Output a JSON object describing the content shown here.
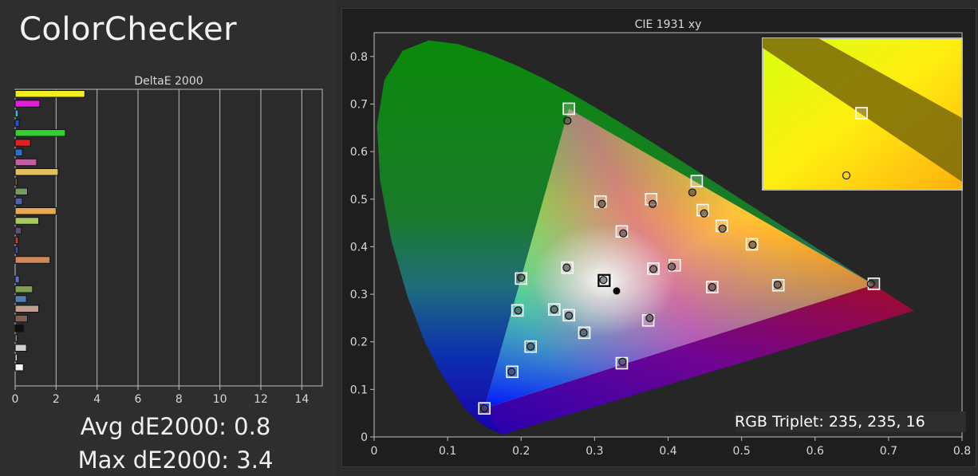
{
  "app": {
    "title": "ColorChecker"
  },
  "stats": {
    "avg": "Avg dE2000: 0.8",
    "max": "Max dE2000: 3.4"
  },
  "readout": {
    "rgb": "RGB Triplet: 235, 235, 16"
  },
  "colors": {
    "background": "#2b2b2b",
    "panel": "#1e1e1e",
    "grid": "#bdbdbd"
  },
  "chart_data": [
    {
      "type": "bar",
      "orientation": "horizontal",
      "title": "DeltaE 2000",
      "xlim": [
        0,
        15
      ],
      "xticks": [
        0,
        2,
        4,
        6,
        8,
        10,
        12,
        14
      ],
      "values": [
        3.4,
        1.2,
        0.15,
        0.2,
        2.45,
        0.75,
        0.35,
        1.05,
        2.1,
        0.1,
        0.6,
        0.35,
        2.0,
        1.15,
        0.3,
        0.15,
        0.15,
        1.7,
        0.0,
        0.2,
        0.85,
        0.55,
        1.15,
        0.6,
        0.4,
        0.1,
        0.55,
        0.1,
        0.4
      ],
      "bar_colors": [
        "#f0ee20",
        "#e020d8",
        "#3db0e0",
        "#2050d0",
        "#30d030",
        "#e02020",
        "#3070c0",
        "#c060a0",
        "#e0c060",
        "#707040",
        "#70a060",
        "#5060b0",
        "#e8a850",
        "#a8c860",
        "#605070",
        "#c04040",
        "#4050a0",
        "#d08858",
        "#000000",
        "#6070c0",
        "#80a050",
        "#5080b0",
        "#c0a090",
        "#806050",
        "#101010",
        "#909090",
        "#d0d0d0",
        "#e0e0e0",
        "#f4f4f4"
      ]
    },
    {
      "type": "scatter",
      "title": "CIE 1931 xy",
      "xlim": [
        0,
        0.8
      ],
      "ylim": [
        0,
        0.85
      ],
      "xticks": [
        0,
        0.1,
        0.2,
        0.3,
        0.4,
        0.5,
        0.6,
        0.7,
        0.8
      ],
      "yticks": [
        0,
        0.1,
        0.2,
        0.3,
        0.4,
        0.5,
        0.6,
        0.7,
        0.8
      ],
      "gamut_triangle": [
        [
          0.68,
          0.32
        ],
        [
          0.265,
          0.69
        ],
        [
          0.15,
          0.06
        ]
      ],
      "white_point": [
        0.313,
        0.329
      ],
      "targets": [
        [
          0.68,
          0.322
        ],
        [
          0.265,
          0.69
        ],
        [
          0.15,
          0.06
        ],
        [
          0.439,
          0.538
        ],
        [
          0.316,
          0.329
        ],
        [
          0.447,
          0.477
        ],
        [
          0.473,
          0.444
        ],
        [
          0.514,
          0.405
        ],
        [
          0.55,
          0.319
        ],
        [
          0.46,
          0.315
        ],
        [
          0.409,
          0.361
        ],
        [
          0.38,
          0.354
        ],
        [
          0.377,
          0.5
        ],
        [
          0.308,
          0.495
        ],
        [
          0.337,
          0.432
        ],
        [
          0.263,
          0.356
        ],
        [
          0.2,
          0.333
        ],
        [
          0.195,
          0.266
        ],
        [
          0.245,
          0.268
        ],
        [
          0.265,
          0.256
        ],
        [
          0.213,
          0.19
        ],
        [
          0.188,
          0.137
        ],
        [
          0.286,
          0.219
        ],
        [
          0.373,
          0.245
        ],
        [
          0.337,
          0.155
        ]
      ],
      "measured": [
        [
          0.676,
          0.322
        ],
        [
          0.263,
          0.665
        ],
        [
          0.15,
          0.06
        ],
        [
          0.433,
          0.514
        ],
        [
          0.312,
          0.33
        ],
        [
          0.449,
          0.47
        ],
        [
          0.474,
          0.438
        ],
        [
          0.515,
          0.404
        ],
        [
          0.549,
          0.32
        ],
        [
          0.46,
          0.315
        ],
        [
          0.405,
          0.358
        ],
        [
          0.38,
          0.353
        ],
        [
          0.379,
          0.49
        ],
        [
          0.31,
          0.49
        ],
        [
          0.339,
          0.428
        ],
        [
          0.262,
          0.356
        ],
        [
          0.2,
          0.335
        ],
        [
          0.196,
          0.266
        ],
        [
          0.245,
          0.268
        ],
        [
          0.265,
          0.255
        ],
        [
          0.213,
          0.19
        ],
        [
          0.187,
          0.137
        ],
        [
          0.285,
          0.219
        ],
        [
          0.375,
          0.25
        ],
        [
          0.338,
          0.158
        ]
      ],
      "reference_dot": [
        0.33,
        0.307
      ],
      "inset": {
        "target": [
          0.439,
          0.538
        ],
        "measured": [
          0.433,
          0.514
        ]
      }
    }
  ]
}
